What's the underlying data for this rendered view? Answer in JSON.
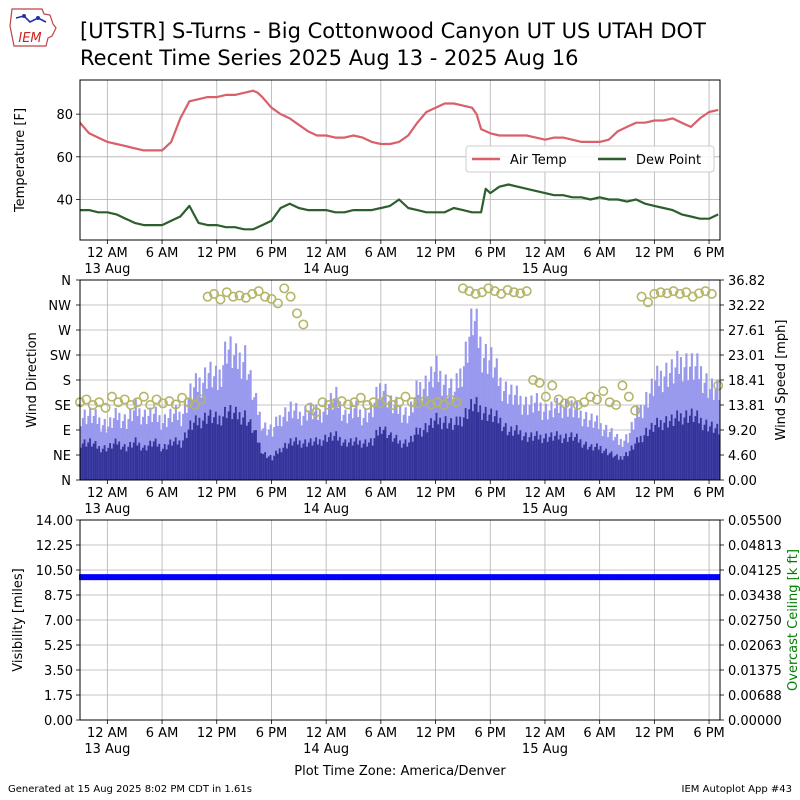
{
  "header": {
    "title_line1": "[UTSTR] S-Turns - Big Cottonwood Canyon  UT US UTAH DOT",
    "title_line2": "Recent Time Series 2025 Aug 13 - 2025 Aug 16",
    "logo_text": "IEM"
  },
  "footer": {
    "generated": "Generated at 15 Aug 2025 8:02 PM CDT in 1.61s",
    "app": "IEM Autoplot App #43",
    "timezone_label": "Plot Time Zone: America/Denver"
  },
  "colors": {
    "air_temp": "#d9606a",
    "dew_point": "#2d5e2d",
    "wind_speed": "#9999ee",
    "wind_gust_dark": "#333399",
    "wind_dir_marker": "#b5b56a",
    "visibility": "#0000ff",
    "ceiling_label": "#008000",
    "grid": "#b0b0b0"
  },
  "chart_data": [
    {
      "type": "line",
      "panel": "temperature",
      "ylabel": "Temperature [F]",
      "ylim": [
        21,
        96
      ],
      "yticks": [
        40,
        60,
        80
      ],
      "x_unit": "hours since 2025-08-12 21:00 MDT",
      "xlim": [
        0,
        70.2
      ],
      "xtick_hours": [
        3,
        9,
        15,
        21,
        27,
        33,
        39,
        45,
        51,
        57,
        63,
        69
      ],
      "xtick_labels": [
        "12 AM",
        "6 AM",
        "12 PM",
        "6 PM",
        "12 AM",
        "6 AM",
        "12 PM",
        "6 PM",
        "12 AM",
        "6 AM",
        "12 PM",
        "6 PM"
      ],
      "date_labels": [
        {
          "hour": 3,
          "label": "13 Aug"
        },
        {
          "hour": 27,
          "label": "14 Aug"
        },
        {
          "hour": 51,
          "label": "15 Aug"
        }
      ],
      "grid": true,
      "legend": {
        "placement": "right",
        "entries": [
          "Air Temp",
          "Dew Point"
        ]
      },
      "series": [
        {
          "name": "Air Temp",
          "x": [
            0,
            1,
            2,
            3,
            4,
            5,
            6,
            7,
            8,
            9,
            10,
            11,
            12,
            13,
            14,
            15,
            16,
            17,
            18,
            19,
            19.5,
            20,
            21,
            22,
            23,
            24,
            25,
            26,
            27,
            28,
            29,
            30,
            31,
            32,
            33,
            34,
            35,
            36,
            37,
            38,
            39,
            40,
            41,
            42,
            43,
            43.5,
            44,
            45,
            46,
            47,
            48,
            49,
            50,
            51,
            52,
            53,
            54,
            55,
            56,
            57,
            58,
            59,
            60,
            61,
            62,
            63,
            64,
            65,
            66,
            67,
            68,
            69,
            70
          ],
          "y": [
            76,
            71,
            69,
            67,
            66,
            65,
            64,
            63,
            63,
            63,
            67,
            78,
            86,
            87,
            88,
            88,
            89,
            89,
            90,
            91,
            90,
            88,
            83,
            80,
            78,
            75,
            72,
            70,
            70,
            69,
            69,
            70,
            69,
            67,
            66,
            66,
            67,
            70,
            76,
            81,
            83,
            85,
            85,
            84,
            83,
            80,
            73,
            71,
            70,
            70,
            70,
            70,
            69,
            68,
            69,
            69,
            68,
            67,
            67,
            67,
            68,
            72,
            74,
            76,
            76,
            77,
            77,
            78,
            76,
            74,
            78,
            81,
            82
          ]
        },
        {
          "name": "Dew Point",
          "x": [
            0,
            1,
            2,
            3,
            4,
            5,
            6,
            7,
            8,
            9,
            10,
            11,
            12,
            13,
            14,
            15,
            16,
            17,
            18,
            19,
            20,
            21,
            22,
            23,
            24,
            25,
            26,
            27,
            28,
            29,
            30,
            31,
            32,
            33,
            34,
            35,
            36,
            37,
            38,
            39,
            40,
            41,
            42,
            43,
            44,
            44.5,
            45,
            46,
            47,
            48,
            49,
            50,
            51,
            52,
            53,
            54,
            55,
            56,
            57,
            58,
            59,
            60,
            61,
            62,
            63,
            64,
            65,
            66,
            67,
            68,
            69,
            70
          ],
          "y": [
            35,
            35,
            34,
            34,
            33,
            31,
            29,
            28,
            28,
            28,
            30,
            32,
            37,
            29,
            28,
            28,
            27,
            27,
            26,
            26,
            28,
            30,
            36,
            38,
            36,
            35,
            35,
            35,
            34,
            34,
            35,
            35,
            35,
            36,
            37,
            40,
            36,
            35,
            34,
            34,
            34,
            36,
            35,
            34,
            34,
            45,
            43,
            46,
            47,
            46,
            45,
            44,
            43,
            42,
            42,
            41,
            41,
            40,
            41,
            40,
            40,
            39,
            40,
            38,
            37,
            36,
            35,
            33,
            32,
            31,
            31,
            33
          ]
        }
      ]
    },
    {
      "type": "bar",
      "panel": "wind",
      "ylabel": "Wind Direction",
      "y2label": "Wind Speed [mph]",
      "direction_ticks": [
        "N",
        "NE",
        "E",
        "SE",
        "S",
        "SW",
        "W",
        "NW",
        "N"
      ],
      "direction_degrees": [
        0,
        45,
        90,
        135,
        180,
        225,
        270,
        315,
        360
      ],
      "speed_ticks": [
        "0.00",
        "4.60",
        "9.20",
        "13.81",
        "18.41",
        "23.01",
        "27.61",
        "32.22",
        "36.82"
      ],
      "speed_lim": [
        0,
        36.82
      ],
      "x_unit": "hours since 2025-08-12 21:00 MDT",
      "xtick_labels": [
        "12 AM",
        "6 AM",
        "12 PM",
        "6 PM",
        "12 AM",
        "6 AM",
        "12 PM",
        "6 PM",
        "12 AM",
        "6 AM",
        "12 PM",
        "6 PM"
      ],
      "date_labels": [
        "13 Aug",
        "14 Aug",
        "15 Aug"
      ],
      "grid": true,
      "speed_hours": [
        0,
        1,
        2,
        3,
        4,
        5,
        6,
        7,
        8,
        9,
        10,
        11,
        12,
        13,
        14,
        15,
        16,
        17,
        18,
        19,
        20,
        21,
        22,
        23,
        24,
        25,
        26,
        27,
        28,
        29,
        30,
        31,
        32,
        33,
        34,
        35,
        36,
        37,
        38,
        39,
        40,
        41,
        42,
        43,
        44,
        45,
        46,
        47,
        48,
        49,
        50,
        51,
        52,
        53,
        54,
        55,
        56,
        57,
        58,
        59,
        60,
        61,
        62,
        63,
        64,
        65,
        66,
        67,
        68,
        69,
        70
      ],
      "gust_mph": [
        12,
        12,
        11,
        10,
        12,
        11,
        13,
        12,
        12,
        11,
        12,
        12,
        16,
        18,
        20,
        18,
        25,
        22,
        23,
        15,
        10,
        9,
        12,
        13,
        12,
        13,
        12,
        14,
        15,
        12,
        13,
        12,
        13,
        18,
        14,
        13,
        12,
        17,
        18,
        20,
        18,
        16,
        22,
        30,
        24,
        22,
        18,
        16,
        15,
        14,
        14,
        13,
        13,
        14,
        13,
        12,
        11,
        10,
        9,
        7,
        8,
        12,
        15,
        18,
        20,
        20,
        22,
        21,
        20,
        17,
        16
      ],
      "sustained_mph": [
        7,
        7,
        6,
        6,
        7,
        6,
        7,
        6,
        7,
        6,
        7,
        7,
        10,
        11,
        12,
        11,
        13,
        12,
        12,
        9,
        5,
        4,
        6,
        7,
        7,
        7,
        7,
        8,
        8,
        7,
        7,
        7,
        7,
        10,
        8,
        7,
        7,
        9,
        10,
        11,
        11,
        10,
        12,
        14,
        13,
        12,
        11,
        9,
        9,
        8,
        8,
        8,
        8,
        8,
        8,
        7,
        6,
        6,
        5,
        4,
        5,
        7,
        9,
        10,
        11,
        11,
        12,
        12,
        11,
        10,
        9
      ],
      "direction_hours": [
        0,
        0.7,
        1.4,
        2.1,
        2.8,
        3.5,
        4.2,
        4.9,
        5.6,
        6.3,
        7,
        7.7,
        8.4,
        9.1,
        9.8,
        10.5,
        11.2,
        11.9,
        12.6,
        13.3,
        14,
        14.7,
        15.4,
        16.1,
        16.8,
        17.5,
        18.2,
        18.9,
        19.6,
        20.3,
        21,
        21.7,
        22.4,
        23.1,
        23.8,
        24.5,
        25.2,
        25.9,
        26.6,
        27.3,
        28,
        28.7,
        29.4,
        30.1,
        30.8,
        31.5,
        32.2,
        32.9,
        33.6,
        34.3,
        35,
        35.7,
        36.4,
        37.1,
        37.8,
        38.5,
        39.2,
        39.9,
        40.6,
        41.3,
        42,
        42.7,
        43.4,
        44.1,
        44.8,
        45.5,
        46.2,
        46.9,
        47.6,
        48.3,
        49,
        49.7,
        50.4,
        51.1,
        51.8,
        52.5,
        53.2,
        53.9,
        54.6,
        55.3,
        56,
        56.7,
        57.4,
        58.1,
        58.8,
        59.5,
        60.2,
        60.9,
        61.6,
        62.3,
        63,
        63.7,
        64.4,
        65.1,
        65.8,
        66.5,
        67.2,
        67.9,
        68.6,
        69.3,
        70
      ],
      "direction_deg": [
        140,
        145,
        135,
        140,
        130,
        150,
        140,
        145,
        135,
        140,
        150,
        135,
        145,
        138,
        142,
        136,
        148,
        140,
        135,
        145,
        330,
        335,
        325,
        338,
        330,
        332,
        328,
        335,
        340,
        330,
        326,
        318,
        345,
        330,
        300,
        280,
        130,
        122,
        140,
        135,
        138,
        142,
        136,
        140,
        148,
        135,
        140,
        138,
        145,
        135,
        140,
        150,
        140,
        138,
        142,
        136,
        140,
        135,
        145,
        140,
        345,
        340,
        335,
        338,
        345,
        340,
        335,
        342,
        338,
        336,
        340,
        180,
        175,
        150,
        170,
        145,
        138,
        142,
        135,
        140,
        150,
        145,
        160,
        140,
        135,
        170,
        150,
        125,
        330,
        320,
        335,
        338,
        336,
        340,
        335,
        338,
        330,
        336,
        340,
        335,
        170
      ]
    },
    {
      "type": "scatter",
      "panel": "visibility",
      "ylabel": "Visibility [miles]",
      "y2label": "Overcast Ceiling [k ft]",
      "ylim": [
        0,
        14
      ],
      "yticks": [
        "0.00",
        "1.75",
        "3.50",
        "5.25",
        "7.00",
        "8.75",
        "10.50",
        "12.25",
        "14.00"
      ],
      "y2lim": [
        0,
        0.055
      ],
      "y2ticks": [
        "0.00000",
        "0.00688",
        "0.01375",
        "0.02063",
        "0.02750",
        "0.03438",
        "0.04125",
        "0.04813",
        "0.05500"
      ],
      "x_unit": "hours since 2025-08-12 21:00 MDT",
      "xtick_labels": [
        "12 AM",
        "6 AM",
        "12 PM",
        "6 PM",
        "12 AM",
        "6 AM",
        "12 PM",
        "6 PM",
        "12 AM",
        "6 AM",
        "12 PM",
        "6 PM"
      ],
      "date_labels": [
        "13 Aug",
        "14 Aug",
        "15 Aug"
      ],
      "grid": true,
      "series": [
        {
          "name": "Visibility",
          "x_range": [
            0,
            70
          ],
          "y": 10
        }
      ]
    }
  ]
}
